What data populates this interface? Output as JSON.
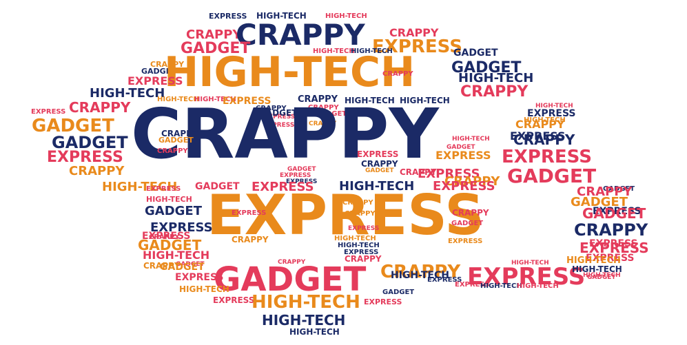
{
  "words": {
    "crappy": "CRAPPY",
    "express": "EXPRESS",
    "hightech": "HIGH-TECH",
    "gadget": "GADGET"
  },
  "colors": {
    "navy": "#1b2a66",
    "orange": "#e98a1c",
    "pink": "#e43b5b",
    "black": "#161616"
  }
}
